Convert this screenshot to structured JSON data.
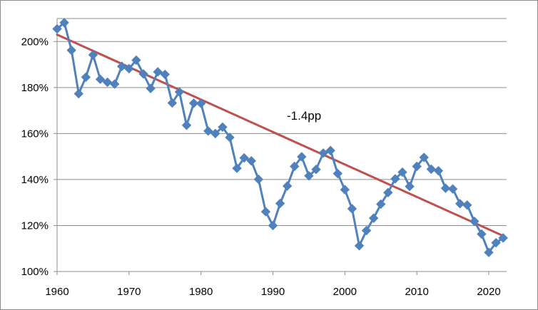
{
  "chart_data": {
    "type": "line",
    "title": "",
    "xlabel": "",
    "ylabel": "",
    "xlim": [
      1960,
      2022
    ],
    "ylim": [
      100,
      210
    ],
    "x_ticks": [
      "1960",
      "1970",
      "1980",
      "1990",
      "2000",
      "2010",
      "2020"
    ],
    "y_ticks": [
      "100%",
      "120%",
      "140%",
      "160%",
      "180%",
      "200%"
    ],
    "grid": "horizontal",
    "legend": "none",
    "annotation": "-1.4pp",
    "series": [
      {
        "color": "#4f81bd",
        "marker": "diamond",
        "x": [
          1960,
          1961,
          1962,
          1963,
          1964,
          1965,
          1966,
          1967,
          1968,
          1969,
          1970,
          1971,
          1972,
          1973,
          1974,
          1975,
          1976,
          1977,
          1978,
          1979,
          1980,
          1981,
          1982,
          1983,
          1984,
          1985,
          1986,
          1987,
          1988,
          1989,
          1990,
          1991,
          1992,
          1993,
          1994,
          1995,
          1996,
          1997,
          1998,
          1999,
          2000,
          2001,
          2002,
          2003,
          2004,
          2005,
          2006,
          2007,
          2008,
          2009,
          2010,
          2011,
          2012,
          2013,
          2014,
          2015,
          2016,
          2017,
          2018,
          2019,
          2020,
          2021,
          2022
        ],
        "values": [
          205.5,
          208.2,
          196.2,
          177.3,
          184.5,
          194.2,
          183.6,
          182.3,
          181.5,
          189.2,
          188.2,
          191.9,
          185.9,
          179.6,
          186.8,
          185.7,
          173.3,
          178.1,
          163.6,
          173.2,
          173.1,
          161.1,
          160.0,
          162.8,
          158.3,
          144.9,
          149.4,
          148.1,
          140.1,
          126.0,
          120.0,
          129.6,
          137.2,
          145.7,
          149.9,
          141.6,
          144.4,
          151.5,
          152.6,
          142.6,
          135.6,
          127.3,
          111.2,
          117.8,
          123.2,
          129.3,
          134.3,
          140.3,
          143.2,
          137.0,
          145.7,
          149.6,
          144.5,
          143.8,
          136.2,
          135.9,
          129.5,
          128.9,
          121.8,
          116.3,
          108.3,
          112.5,
          114.6
        ]
      }
    ],
    "trendline": {
      "color": "#c0504d",
      "x": [
        1960,
        2022
      ],
      "values": [
        203.0,
        115.5
      ]
    }
  }
}
